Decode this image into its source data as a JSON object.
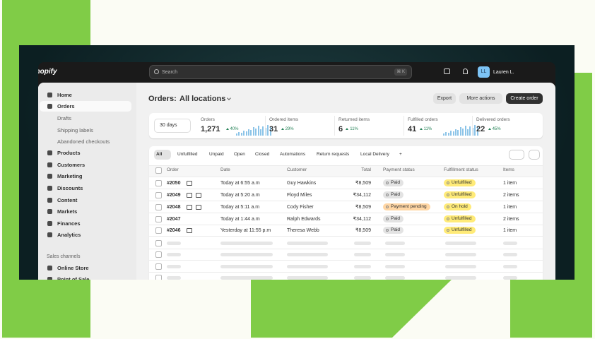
{
  "topbar": {
    "brand": "shopify",
    "search_placeholder": "Search",
    "shortcut": "⌘ K",
    "initials": "LL",
    "user": "Lauren L."
  },
  "sidebar": {
    "items": [
      "Home",
      "Orders",
      "Drafts",
      "Shipping labels",
      "Abandoned checkouts",
      "Products",
      "Customers",
      "Marketing",
      "Discounts",
      "Content",
      "Markets",
      "Finances",
      "Analytics"
    ],
    "section": "Sales channels",
    "channels": [
      "Online Store",
      "Point of Sale"
    ]
  },
  "header": {
    "title": "Orders:",
    "location": "All locations",
    "buttons": [
      "Export",
      "More actions",
      "Create order"
    ]
  },
  "stats": {
    "period": "30 days",
    "cards": [
      {
        "label": "Orders",
        "value": "1,271",
        "change": "40%"
      },
      {
        "label": "Ordered items",
        "value": "31",
        "change": "29%"
      },
      {
        "label": "Returned items",
        "value": "6",
        "change": "11%"
      },
      {
        "label": "Fulfilled orders",
        "value": "41",
        "change": "11%"
      },
      {
        "label": "Delivered orders",
        "value": "22",
        "change": "45%"
      }
    ]
  },
  "tabs": [
    "All",
    "Unfulfilled",
    "Unpaid",
    "Open",
    "Closed",
    "Automations",
    "Return requests",
    "Local Delivery",
    "+"
  ],
  "table": {
    "columns": [
      "Order",
      "Date",
      "Customer",
      "Total",
      "Payment status",
      "Fulfillment status",
      "Items"
    ],
    "rows": [
      [
        "#2050",
        "Today at 6:55 a.m",
        "Guy Hawkins",
        "₹8,509",
        "Paid",
        "Unfulfilled",
        "1 item"
      ],
      [
        "#2049",
        "Today at 5:20 a.m",
        "Floyd Miles",
        "₹34,112",
        "Paid",
        "Unfulfilled",
        "2 items"
      ],
      [
        "#2048",
        "Today at 5:11 a.m",
        "Cody Fisher",
        "₹8,509",
        "Payment pending",
        "On hold",
        "1 item"
      ],
      [
        "#2047",
        "Today at 1:44 a.m",
        "Ralph Edwards",
        "₹34,112",
        "Paid",
        "Unfulfilled",
        "2 items"
      ],
      [
        "#2046",
        "Yesterday at 11:55 p.m",
        "Theresa Webb",
        "₹8,509",
        "Paid",
        "Unfulfilled",
        "1 item"
      ]
    ]
  }
}
